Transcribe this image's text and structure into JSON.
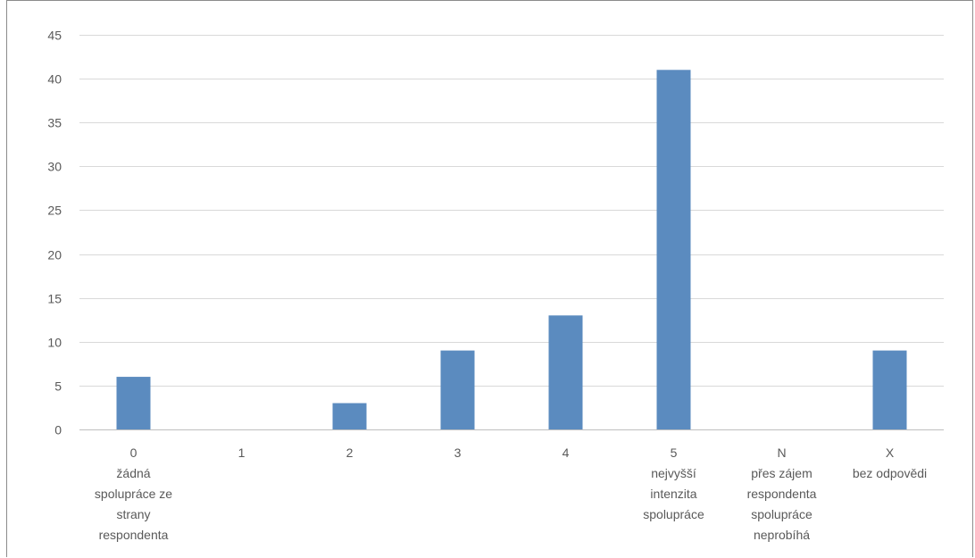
{
  "chart_data": {
    "type": "bar",
    "title": "",
    "xlabel": "",
    "ylabel": "",
    "ylim": [
      0,
      45
    ],
    "yticks": [
      0,
      5,
      10,
      15,
      20,
      25,
      30,
      35,
      40,
      45
    ],
    "grid": true,
    "legend": "none",
    "bar_color": "#5b8bbf",
    "grid_color": "#d9d9d9",
    "categories": [
      {
        "code": "0",
        "lines": [
          "žádná",
          "spolupráce ze",
          "strany",
          "respondenta"
        ]
      },
      {
        "code": "1",
        "lines": []
      },
      {
        "code": "2",
        "lines": []
      },
      {
        "code": "3",
        "lines": []
      },
      {
        "code": "4",
        "lines": []
      },
      {
        "code": "5",
        "lines": [
          "nejvyšší",
          "intenzita",
          "spolupráce"
        ]
      },
      {
        "code": "N",
        "lines": [
          "přes zájem",
          "respondenta",
          "spolupráce",
          "neprobíhá"
        ]
      },
      {
        "code": "X",
        "lines": [
          "bez odpovědi"
        ]
      }
    ],
    "values": [
      6,
      0,
      3,
      9,
      13,
      41,
      0,
      9
    ]
  }
}
